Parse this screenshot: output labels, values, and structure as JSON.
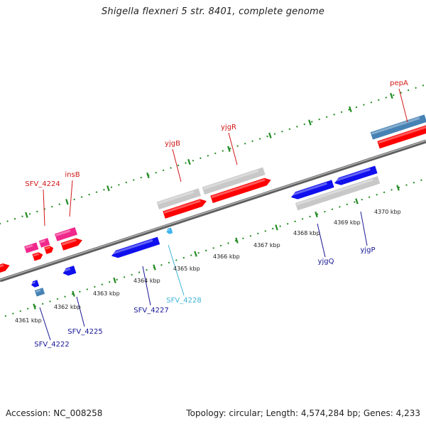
{
  "title": "Shigella flexneri 5 str. 8401, complete genome",
  "footer": {
    "accession": "Accession: NC_008258",
    "summary": "Topology: circular; Length: 4,574,284 bp; Genes: 4,233"
  },
  "colors": {
    "forward_cds": "#ff0000",
    "reverse_cds": "#1010ee",
    "forward_label": "#d01818",
    "reverse_label": "#151595",
    "rna_label": "#3cb4d8",
    "pseudo": "#c8c8c8",
    "tick": "#228b22",
    "backbone": "#777777"
  },
  "ticks": [
    {
      "label": "4361 kbp"
    },
    {
      "label": "4362 kbp"
    },
    {
      "label": "4363 kbp"
    },
    {
      "label": "4364 kbp"
    },
    {
      "label": "4365 kbp"
    },
    {
      "label": "4366 kbp"
    },
    {
      "label": "4367 kbp"
    },
    {
      "label": "4368 kbp"
    },
    {
      "label": "4369 kbp"
    },
    {
      "label": "4370 kbp"
    }
  ],
  "genes": [
    {
      "name": "pepA",
      "strand": "forward"
    },
    {
      "name": "yjgR",
      "strand": "forward"
    },
    {
      "name": "yjgB",
      "strand": "forward"
    },
    {
      "name": "insB",
      "strand": "forward"
    },
    {
      "name": "SFV_4224",
      "strand": "forward"
    },
    {
      "name": "yjgQ",
      "strand": "reverse"
    },
    {
      "name": "yjgP",
      "strand": "reverse"
    },
    {
      "name": "SFV_4227",
      "strand": "reverse"
    },
    {
      "name": "SFV_4228",
      "strand": "rna"
    },
    {
      "name": "SFV_4225",
      "strand": "reverse"
    },
    {
      "name": "SFV_4222",
      "strand": "reverse"
    }
  ]
}
